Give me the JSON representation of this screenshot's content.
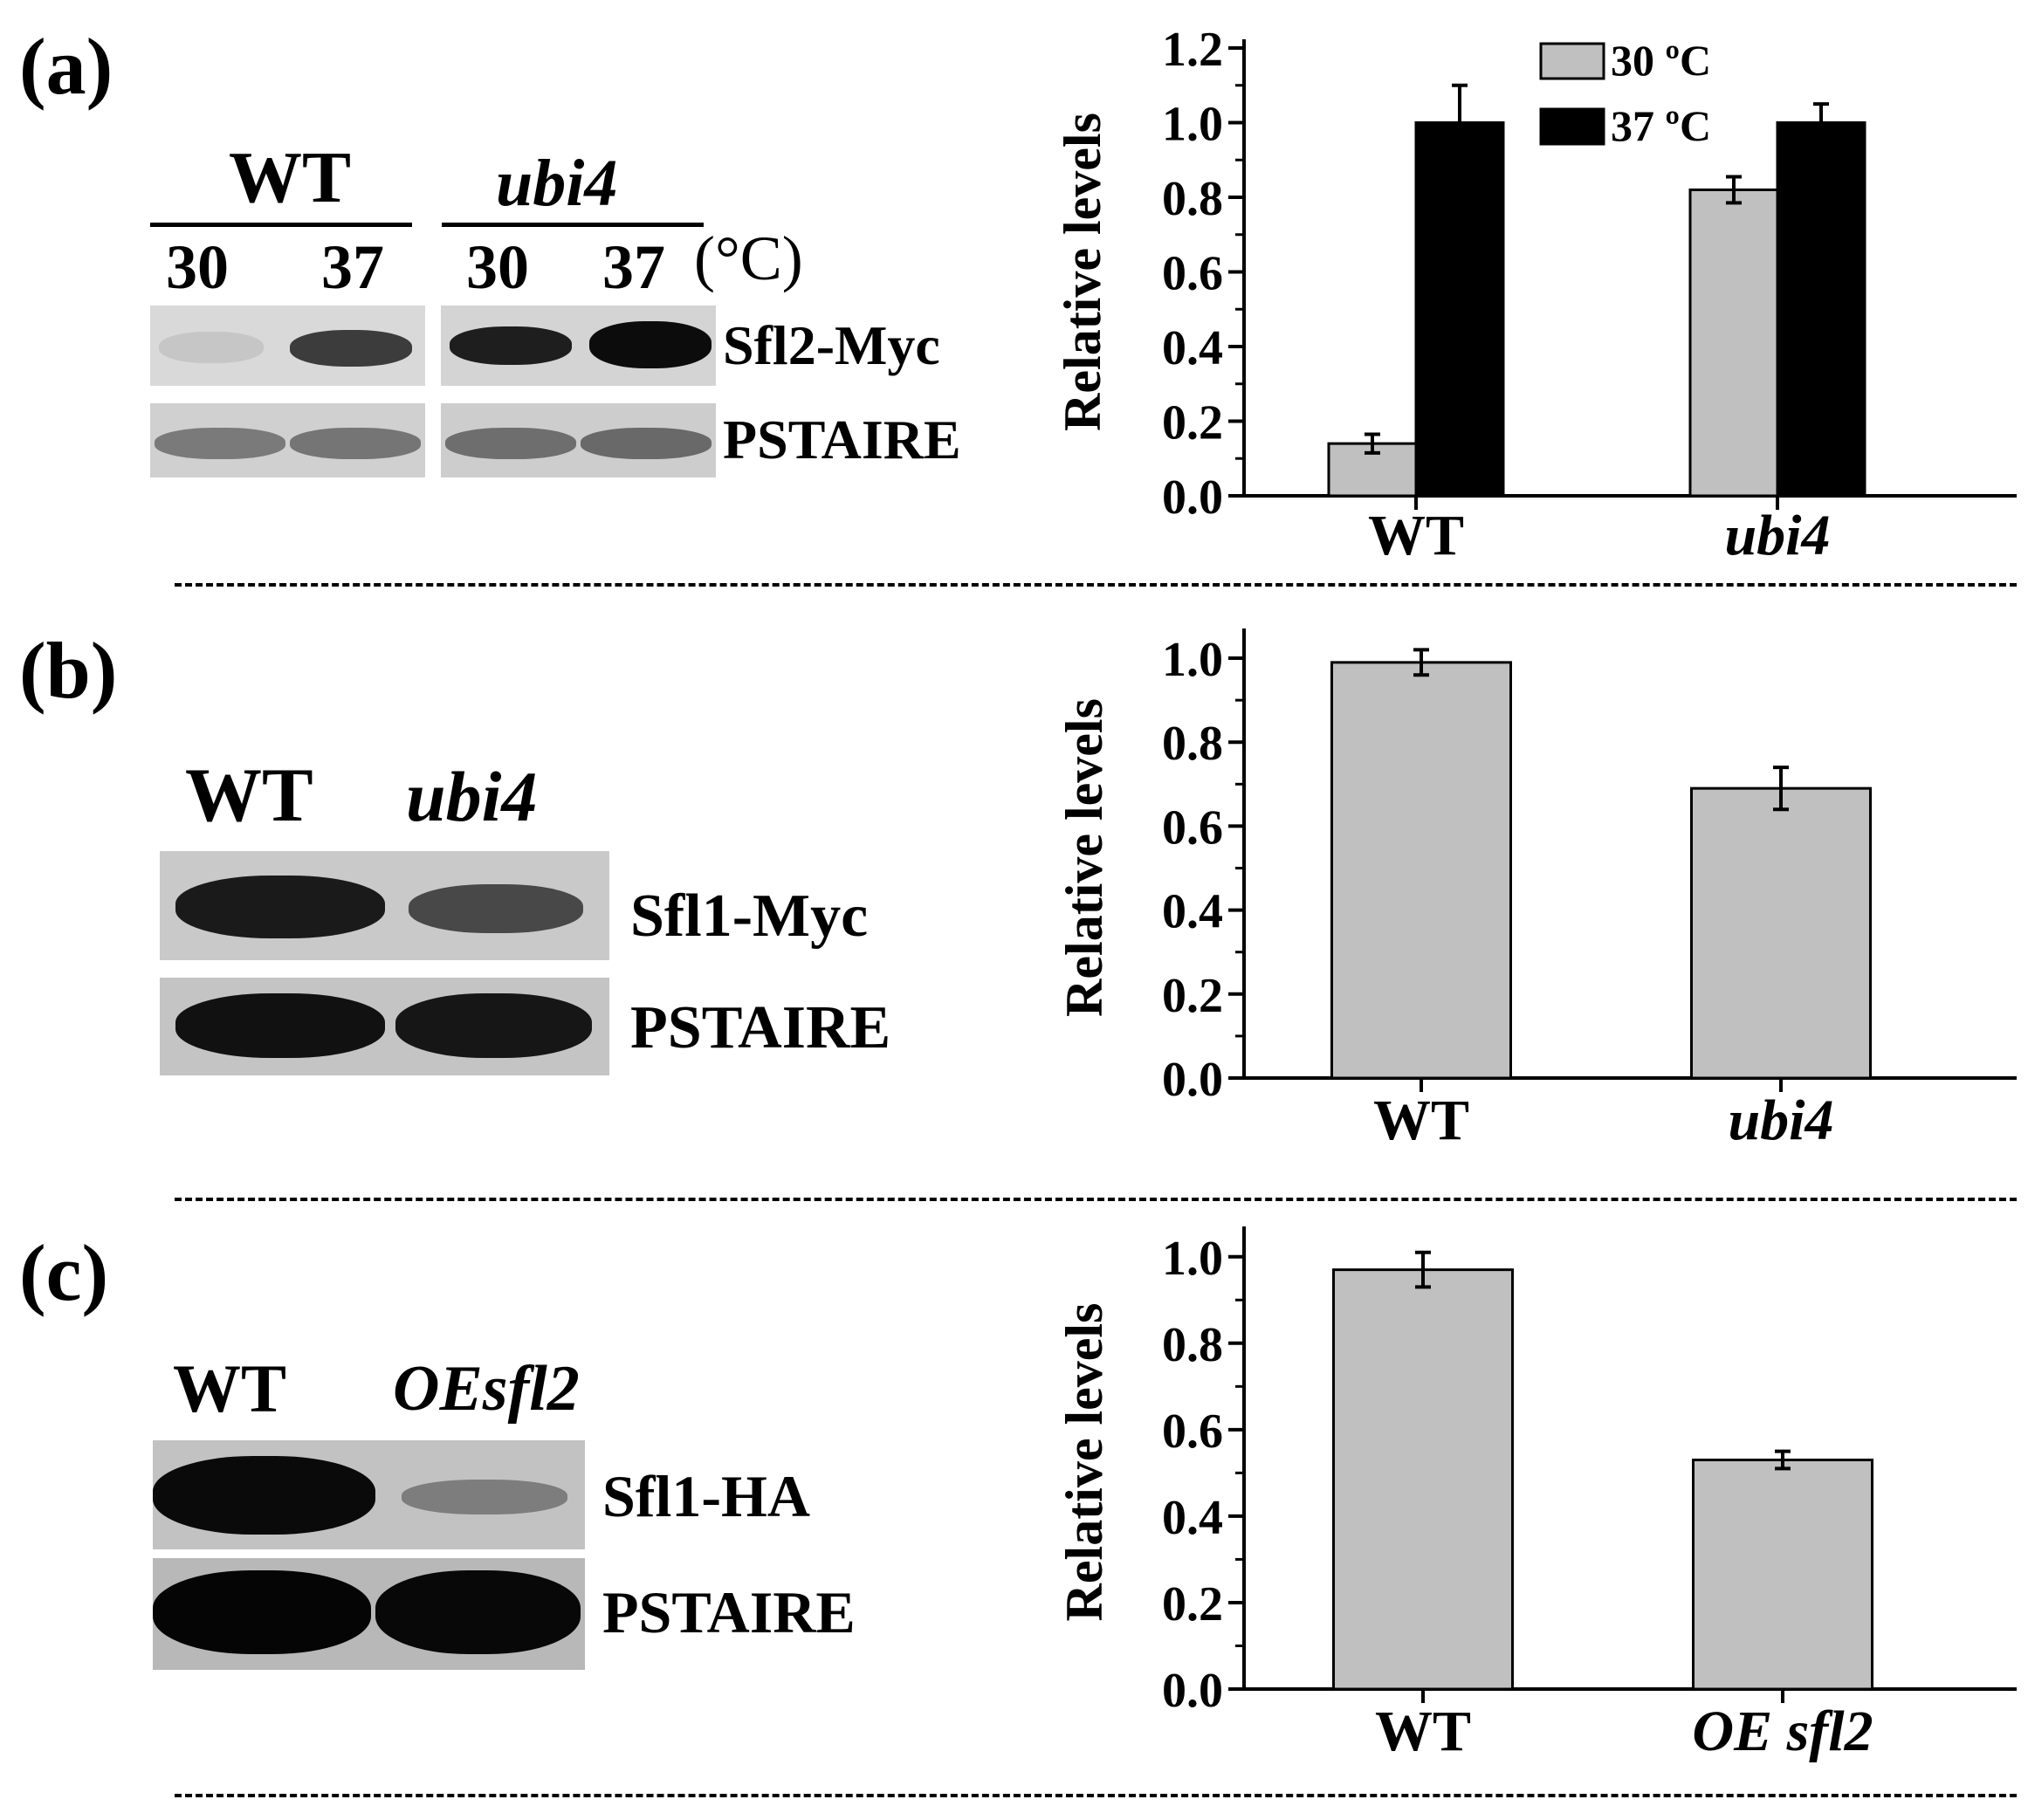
{
  "panels": [
    {
      "letter": "(a)",
      "blot": {
        "group1": "WT",
        "group2": "ubi4",
        "temp_labels": [
          "30",
          "37",
          "30",
          "37"
        ],
        "temp_unit": "(°C)",
        "row1": "Sfl2-Myc",
        "row2": "PSTAIRE"
      }
    },
    {
      "letter": "(b)",
      "blot": {
        "lane1": "WT",
        "lane2": "ubi4",
        "row1": "Sfl1-Myc",
        "row2": "PSTAIRE"
      }
    },
    {
      "letter": "(c)",
      "blot": {
        "lane1": "WT",
        "lane2": "OEsfl2",
        "row1": "Sfl1-HA",
        "row2": "PSTAIRE"
      }
    }
  ],
  "chart_data": [
    {
      "type": "bar",
      "categories": [
        "WT",
        "ubi4"
      ],
      "series": [
        {
          "name": "30 ºC",
          "values": [
            0.14,
            0.82
          ],
          "errors": [
            0.025,
            0.035
          ],
          "color": "#c0c0c0"
        },
        {
          "name": "37 ºC",
          "values": [
            1.0,
            1.0
          ],
          "errors": [
            0.1,
            0.05
          ],
          "color": "#000000"
        }
      ],
      "ylabel": "Relative levels",
      "ylim": [
        0,
        1.2
      ],
      "yticks": [
        "0.0",
        "0.2",
        "0.4",
        "0.6",
        "0.8",
        "1.0",
        "1.2"
      ],
      "legend": "top-right",
      "grid": false
    },
    {
      "type": "bar",
      "categories": [
        "WT",
        "ubi4"
      ],
      "series": [
        {
          "values": [
            0.99,
            0.69
          ],
          "errors": [
            0.03,
            0.05
          ],
          "color": "#c0c0c0"
        }
      ],
      "ylabel": "Relative levels",
      "ylim": [
        0,
        1.05
      ],
      "yticks": [
        "0.0",
        "0.2",
        "0.4",
        "0.6",
        "0.8",
        "1.0"
      ],
      "grid": false
    },
    {
      "type": "bar",
      "categories": [
        "WT",
        "OE sfl2"
      ],
      "series": [
        {
          "values": [
            0.97,
            0.53
          ],
          "errors": [
            0.04,
            0.02
          ],
          "color": "#c0c0c0"
        }
      ],
      "ylabel": "Relative levels",
      "ylim": [
        0,
        1.05
      ],
      "yticks": [
        "0.0",
        "0.2",
        "0.4",
        "0.6",
        "0.8",
        "1.0"
      ],
      "grid": false
    }
  ]
}
